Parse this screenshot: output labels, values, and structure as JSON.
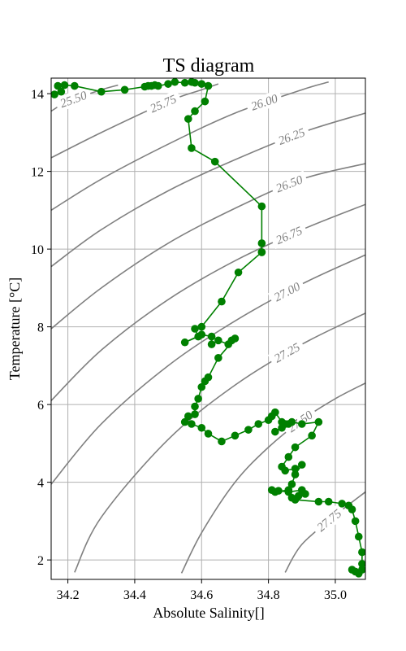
{
  "chart_data": {
    "type": "line",
    "title": "TS diagram",
    "xlabel": "Absolute Salinity[]",
    "ylabel": "Temperature [°C]",
    "xlim": [
      34.15,
      35.09
    ],
    "ylim": [
      1.5,
      14.4
    ],
    "xticks": [
      34.2,
      34.4,
      34.6,
      34.8,
      35.0
    ],
    "xtick_labels": [
      "34.2",
      "34.4",
      "34.6",
      "34.8",
      "35.0"
    ],
    "yticks": [
      2,
      4,
      6,
      8,
      10,
      12,
      14
    ],
    "ytick_labels": [
      "2",
      "4",
      "6",
      "8",
      "10",
      "12",
      "14"
    ],
    "grid": true,
    "colors": {
      "profile": "#008000",
      "contours": "#808080",
      "grid": "#b0b0b0"
    },
    "contours": [
      {
        "label": "25.50",
        "points": [
          [
            34.15,
            13.55
          ],
          [
            34.2,
            13.8
          ],
          [
            34.3,
            14.1
          ],
          [
            34.35,
            14.22
          ]
        ]
      },
      {
        "label": "25.75",
        "points": [
          [
            34.15,
            12.35
          ],
          [
            34.3,
            13.0
          ],
          [
            34.5,
            13.8
          ],
          [
            34.6,
            14.1
          ],
          [
            34.65,
            14.25
          ]
        ]
      },
      {
        "label": "26.00",
        "points": [
          [
            34.15,
            11.0
          ],
          [
            34.3,
            11.8
          ],
          [
            34.5,
            12.7
          ],
          [
            34.7,
            13.5
          ],
          [
            34.9,
            14.1
          ],
          [
            34.98,
            14.3
          ]
        ]
      },
      {
        "label": "26.25",
        "points": [
          [
            34.15,
            9.55
          ],
          [
            34.3,
            10.5
          ],
          [
            34.5,
            11.5
          ],
          [
            34.7,
            12.3
          ],
          [
            34.9,
            13.0
          ],
          [
            35.09,
            13.5
          ]
        ]
      },
      {
        "label": "26.50",
        "points": [
          [
            34.15,
            7.95
          ],
          [
            34.3,
            9.0
          ],
          [
            34.5,
            10.15
          ],
          [
            34.7,
            11.05
          ],
          [
            34.9,
            11.8
          ],
          [
            35.09,
            12.2
          ]
        ]
      },
      {
        "label": "26.75",
        "points": [
          [
            34.15,
            6.1
          ],
          [
            34.3,
            7.4
          ],
          [
            34.5,
            8.7
          ],
          [
            34.7,
            9.7
          ],
          [
            34.9,
            10.5
          ],
          [
            35.09,
            11.15
          ]
        ]
      },
      {
        "label": "27.00",
        "points": [
          [
            34.15,
            3.95
          ],
          [
            34.3,
            5.5
          ],
          [
            34.5,
            7.0
          ],
          [
            34.7,
            8.15
          ],
          [
            34.9,
            9.1
          ],
          [
            35.09,
            9.85
          ]
        ]
      },
      {
        "label": "27.25",
        "points": [
          [
            34.22,
            1.68
          ],
          [
            34.3,
            3.1
          ],
          [
            34.5,
            5.1
          ],
          [
            34.7,
            6.5
          ],
          [
            34.9,
            7.55
          ],
          [
            35.09,
            8.35
          ]
        ]
      },
      {
        "label": "27.50",
        "points": [
          [
            34.54,
            1.66
          ],
          [
            34.6,
            2.7
          ],
          [
            34.7,
            4.0
          ],
          [
            34.8,
            4.9
          ],
          [
            34.9,
            5.6
          ],
          [
            35.0,
            6.15
          ],
          [
            35.09,
            6.55
          ]
        ]
      },
      {
        "label": "27.75",
        "points": [
          [
            34.85,
            1.68
          ],
          [
            34.9,
            2.4
          ],
          [
            35.0,
            3.15
          ],
          [
            35.09,
            3.75
          ]
        ]
      }
    ],
    "series": [
      {
        "x": [
          34.16,
          34.18,
          34.17,
          34.19,
          34.22,
          34.3,
          34.37,
          34.43,
          34.44,
          34.45,
          34.46,
          34.47,
          34.5,
          34.52,
          34.55,
          34.57,
          34.58,
          34.6,
          34.62,
          34.61,
          34.58,
          34.56,
          34.57,
          34.64,
          34.78,
          34.78,
          34.78,
          34.78,
          34.71,
          34.66,
          34.6,
          34.58,
          34.59,
          34.55,
          34.6,
          34.63,
          34.63,
          34.65,
          34.68,
          34.69,
          34.7,
          34.65,
          34.62,
          34.61,
          34.6,
          34.59,
          34.58,
          34.58,
          34.56,
          34.55,
          34.57,
          34.6,
          34.62,
          34.66,
          34.7,
          34.74,
          34.77,
          34.8,
          34.81,
          34.82,
          34.84,
          34.86,
          34.84,
          34.82,
          34.85,
          34.87,
          34.9,
          34.95,
          34.93,
          34.88,
          34.86,
          34.84,
          34.85,
          34.88,
          34.9,
          34.88,
          34.87,
          34.86,
          34.82,
          34.81,
          34.83,
          34.86,
          34.9,
          34.91,
          34.89,
          34.87,
          34.88,
          34.95,
          34.98,
          35.02,
          35.04,
          35.05,
          35.06,
          35.07,
          35.08,
          35.08,
          35.08,
          35.07,
          35.06,
          35.05
        ],
        "y": [
          13.98,
          14.05,
          14.2,
          14.22,
          14.2,
          14.05,
          14.1,
          14.18,
          14.2,
          14.2,
          14.22,
          14.2,
          14.25,
          14.3,
          14.28,
          14.3,
          14.28,
          14.25,
          14.2,
          13.8,
          13.55,
          13.35,
          12.6,
          12.25,
          11.1,
          10.15,
          9.92,
          9.92,
          9.4,
          8.65,
          8.0,
          7.95,
          7.75,
          7.6,
          7.8,
          7.75,
          7.55,
          7.65,
          7.55,
          7.65,
          7.7,
          7.2,
          6.7,
          6.6,
          6.45,
          6.15,
          5.95,
          5.75,
          5.7,
          5.55,
          5.5,
          5.4,
          5.25,
          5.05,
          5.2,
          5.35,
          5.5,
          5.6,
          5.7,
          5.8,
          5.55,
          5.5,
          5.4,
          5.3,
          5.5,
          5.55,
          5.5,
          5.55,
          5.2,
          4.9,
          4.65,
          4.4,
          4.3,
          4.35,
          4.45,
          4.2,
          3.95,
          3.8,
          3.75,
          3.8,
          3.78,
          3.75,
          3.8,
          3.7,
          3.65,
          3.6,
          3.55,
          3.5,
          3.5,
          3.45,
          3.4,
          3.3,
          3.0,
          2.6,
          2.2,
          1.9,
          1.75,
          1.65,
          1.7,
          1.75
        ]
      }
    ]
  }
}
